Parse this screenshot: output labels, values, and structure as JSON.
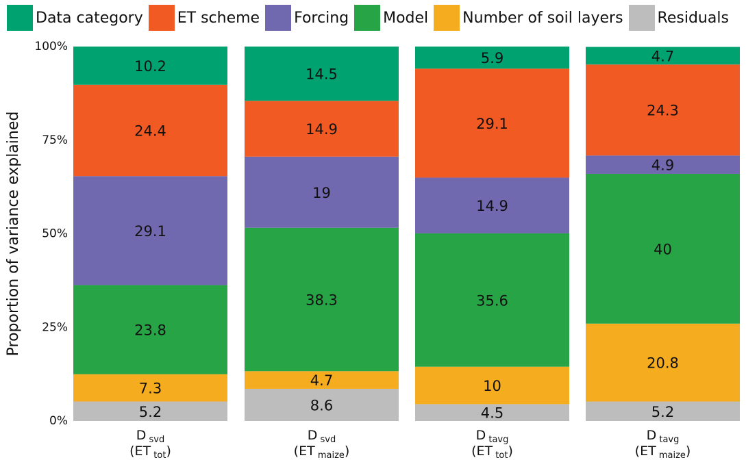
{
  "chart_data": {
    "type": "bar",
    "stacked": true,
    "ylabel": "Proportion of variance explained",
    "yticks": [
      "0%",
      "25%",
      "50%",
      "75%",
      "100%"
    ],
    "ylim": [
      0,
      100
    ],
    "legend_position": "top",
    "categories": [
      {
        "main": "D",
        "sub": "svd",
        "line2_main": "(ET",
        "line2_sub": "tot",
        "line2_close": ")"
      },
      {
        "main": "D",
        "sub": "svd",
        "line2_main": "(ET",
        "line2_sub": "maize",
        "line2_close": ")"
      },
      {
        "main": "D",
        "sub": "tavg",
        "line2_main": "(ET",
        "line2_sub": "tot",
        "line2_close": ")"
      },
      {
        "main": "D",
        "sub": "tavg",
        "line2_main": "(ET",
        "line2_sub": "maize",
        "line2_close": ")"
      }
    ],
    "series": [
      {
        "name": "Residuals",
        "color": "#bdbdbd",
        "values": [
          5.2,
          8.6,
          4.5,
          5.2
        ]
      },
      {
        "name": "Number of soil layers",
        "color": "#f5ac1e",
        "values": [
          7.3,
          4.7,
          10,
          20.8
        ]
      },
      {
        "name": "Model",
        "color": "#27a445",
        "values": [
          23.8,
          38.3,
          35.6,
          40
        ]
      },
      {
        "name": "Forcing",
        "color": "#7169b0",
        "values": [
          29.1,
          19,
          14.9,
          4.9
        ]
      },
      {
        "name": "ET scheme",
        "color": "#f15a22",
        "values": [
          24.4,
          14.9,
          29.1,
          24.3
        ]
      },
      {
        "name": "Data category",
        "color": "#00a26f",
        "values": [
          10.2,
          14.5,
          5.9,
          4.7
        ]
      }
    ],
    "legend_order": [
      "Data category",
      "ET scheme",
      "Forcing",
      "Model",
      "Number of soil layers",
      "Residuals"
    ]
  }
}
